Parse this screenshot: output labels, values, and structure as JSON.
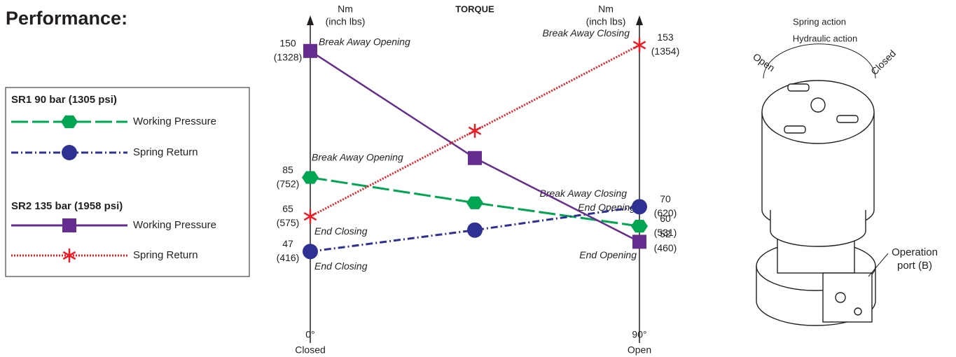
{
  "header": {
    "title": "Performance:"
  },
  "chart_data": {
    "type": "line",
    "title": "TORQUE",
    "y_label": [
      "Nm",
      "(inch lbs)"
    ],
    "y2_label": [
      "Nm",
      "(inch lbs)"
    ],
    "x": [
      0,
      45,
      90
    ],
    "xlim": [
      0,
      90
    ],
    "xticks": [
      {
        "value": 0,
        "label": "0°"
      },
      {
        "value": 90,
        "label": "90°"
      }
    ],
    "xtick_sublabels": [
      "Closed",
      "Open"
    ],
    "ylim": [
      0,
      160
    ],
    "groups": [
      "SR1 90 bar (1305 psi)",
      "SR2 135 bar (1958 psi)"
    ],
    "series": [
      {
        "name": "Working Pressure",
        "group": 0,
        "color": "#00a651",
        "line_style": "long-dash",
        "marker": "hexagon",
        "values": [
          85,
          72,
          60
        ],
        "inch_lbs": [
          752,
          null,
          531
        ],
        "inch_lbs_labels": [
          "(752)",
          null,
          "(531)"
        ],
        "point_labels": [
          "Break Away Opening",
          null,
          "End Opening"
        ]
      },
      {
        "name": "Spring Return",
        "group": 0,
        "color": "#2e3192",
        "line_style": "dash-dot",
        "marker": "circle",
        "values": [
          47,
          58,
          70
        ],
        "inch_lbs": [
          416,
          null,
          620
        ],
        "inch_lbs_labels": [
          "(416)",
          null,
          "(620)"
        ],
        "point_labels": [
          "End Closing",
          null,
          "Break Away Closing"
        ]
      },
      {
        "name": "Working Pressure",
        "group": 1,
        "color": "#662d91",
        "line_style": "solid",
        "marker": "square",
        "values": [
          150,
          95,
          52
        ],
        "inch_lbs": [
          1328,
          null,
          460
        ],
        "inch_lbs_labels": [
          "(1328)",
          null,
          "(460)"
        ],
        "point_labels": [
          "Break Away Opening",
          null,
          "End Opening"
        ]
      },
      {
        "name": "Spring Return",
        "group": 1,
        "color": "#ed1c24",
        "line_style": "dotted",
        "marker": "star",
        "values": [
          65,
          109,
          153
        ],
        "inch_lbs": [
          575,
          null,
          1354
        ],
        "inch_lbs_labels": [
          "(575)",
          null,
          "(1354)"
        ],
        "point_labels": [
          "End Closing",
          null,
          "Break Away Closing"
        ]
      }
    ]
  },
  "illustration": {
    "spring_action": "Spring action",
    "hydraulic_action": "Hydraulic action",
    "open": "Open",
    "closed": "Closed",
    "port_label": [
      "Operation",
      "port (B)"
    ]
  }
}
